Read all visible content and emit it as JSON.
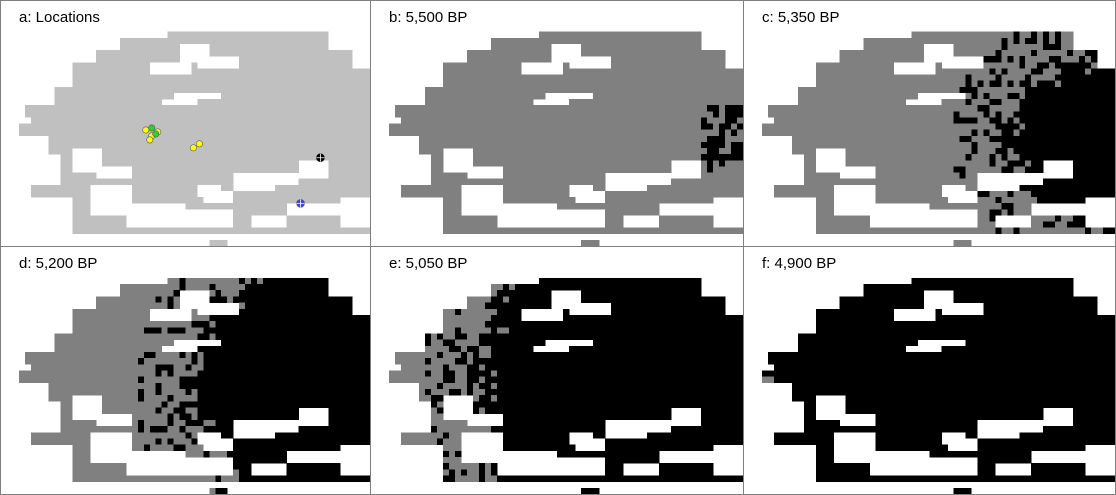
{
  "figure": {
    "panels": [
      {
        "id": "a",
        "title": "a: Locations",
        "style": "locations"
      },
      {
        "id": "b",
        "title": "b: 5,500 BP",
        "style": "spread",
        "stage": 0
      },
      {
        "id": "c",
        "title": "c: 5,350 BP",
        "style": "spread",
        "stage": 1
      },
      {
        "id": "d",
        "title": "d: 5,200 BP",
        "style": "spread",
        "stage": 2
      },
      {
        "id": "e",
        "title": "e: 5,050 BP",
        "style": "spread",
        "stage": 3
      },
      {
        "id": "f",
        "title": "f: 4,900 BP",
        "style": "spread",
        "stage": 4
      }
    ],
    "colors": {
      "sea": "#ffffff",
      "land_locations": "#c0c0c0",
      "land_unaffected": "#808080",
      "land_affected": "#000000",
      "panel_border": "#7f7f7f",
      "site_yellow": "#ffff00",
      "site_green": "#33cc33",
      "site_black": "#000000",
      "site_blue": "#3344ff"
    },
    "location_markers": [
      {
        "name": "yellow-site-cluster",
        "color": "yellow"
      },
      {
        "name": "green-site-cluster",
        "color": "green"
      },
      {
        "name": "yellow-site-pair",
        "color": "yellow"
      },
      {
        "name": "black-site",
        "color": "black"
      },
      {
        "name": "blue-site",
        "color": "blue"
      }
    ]
  }
}
